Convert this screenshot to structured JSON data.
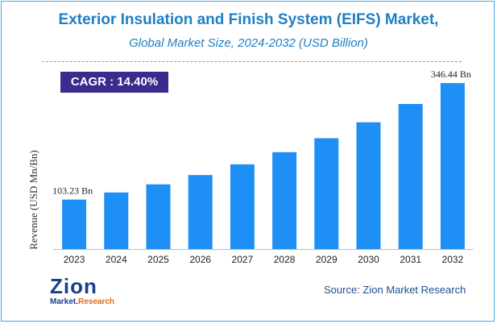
{
  "title": "Exterior Insulation and Finish System (EIFS) Market,",
  "subtitle": "Global Market Size, 2024-2032 (USD Billion)",
  "cagr": "CAGR : 14.40%",
  "source": "Source: Zion Market Research",
  "logo": {
    "main": "Zion",
    "sub_left": "Market.",
    "sub_right": "Research"
  },
  "colors": {
    "bar": "#1e90f5",
    "title": "#1f7fc4",
    "cagr_bg": "#3c2a8c",
    "divider": "#e8874a"
  },
  "chart_data": {
    "type": "bar",
    "title": "Exterior Insulation and Finish System (EIFS) Market,",
    "subtitle": "Global Market Size, 2024-2032 (USD Billion)",
    "xlabel": "",
    "ylabel": "Revenue (USD Mn/Bn)",
    "categories": [
      "2023",
      "2024",
      "2025",
      "2026",
      "2027",
      "2028",
      "2029",
      "2030",
      "2031",
      "2032"
    ],
    "values": [
      103.23,
      118.1,
      135.1,
      154.5,
      176.8,
      202.2,
      231.3,
      264.6,
      302.8,
      346.44
    ],
    "data_labels": [
      {
        "index": 0,
        "text": "103.23 Bn"
      },
      {
        "index": 9,
        "text": "346.44 Bn"
      }
    ],
    "ylim": [
      0,
      360
    ],
    "grid": false,
    "legend": "none"
  }
}
